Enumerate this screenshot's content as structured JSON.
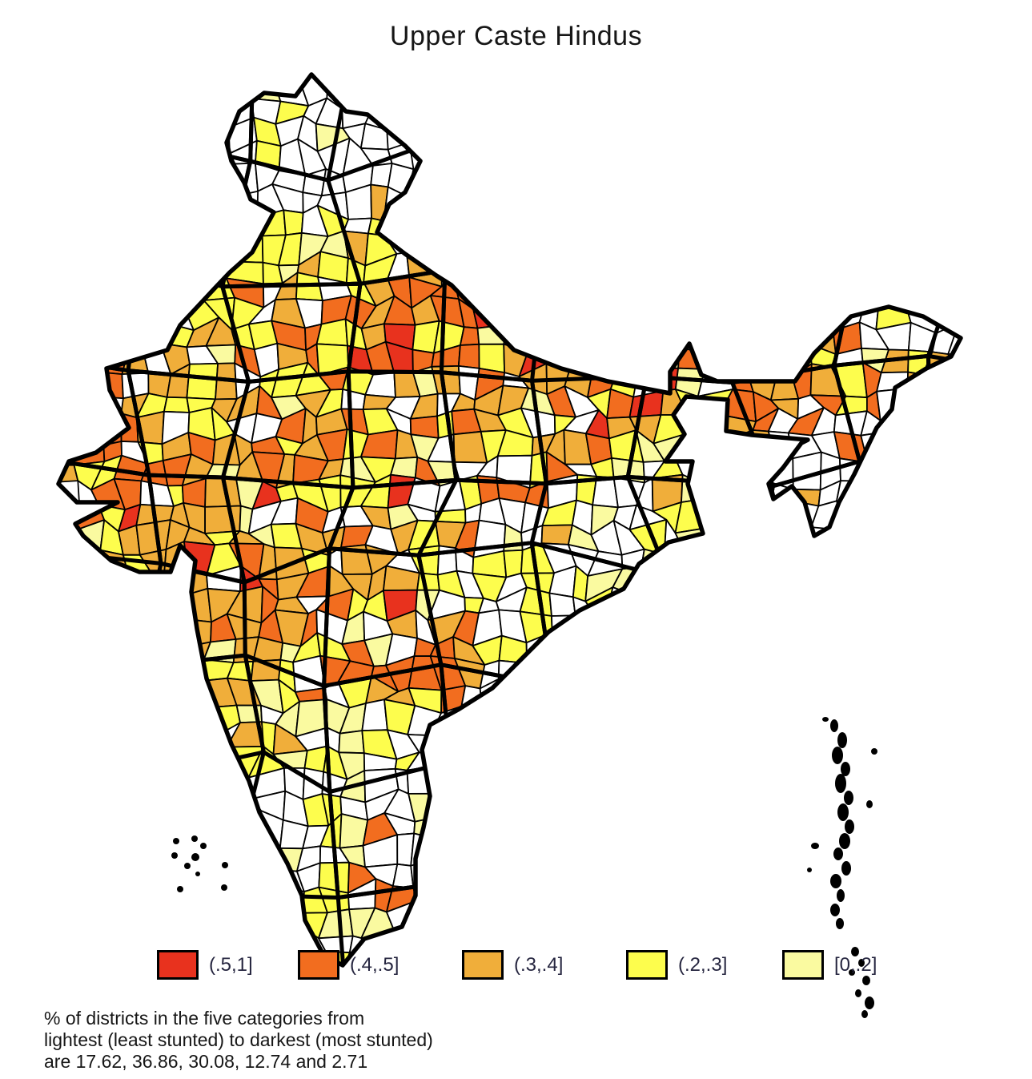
{
  "title": "Upper Caste Hindus",
  "legend": {
    "items": [
      {
        "key": "red",
        "label": "(.5,1]",
        "color": "#e8321e"
      },
      {
        "key": "orange",
        "label": "(.4,.5]",
        "color": "#f26d1f"
      },
      {
        "key": "amber",
        "label": "(.3,.4]",
        "color": "#f0ae3a"
      },
      {
        "key": "yellow",
        "label": "(.2,.3]",
        "color": "#fdfd4d"
      },
      {
        "key": "pale",
        "label": "[0,.2]",
        "color": "#fafaa0"
      }
    ],
    "no_data_color": "#ffffff",
    "border_color": "#000000"
  },
  "note": {
    "lines": [
      "% of districts in the five categories from",
      "lightest (least stunted) to darkest (most stunted)",
      "are 17.62, 36.86, 30.08, 12.74 and 2.71"
    ]
  },
  "chart_data": {
    "type": "choropleth",
    "title": "Upper Caste Hindus",
    "geography": "India, districts (thick lines = state borders)",
    "measure": "share of children stunted among Upper Caste Hindus",
    "categories_light_to_dark": [
      "[0,.2]",
      "(.2,.3]",
      "(.3,.4]",
      "(.4,.5]",
      "(.5,1]"
    ],
    "percent_of_districts_light_to_dark": [
      17.62,
      36.86,
      30.08,
      12.74,
      2.71
    ],
    "legend_position": "bottom",
    "no_data_fill": "white",
    "note": "% of districts in the five categories from lightest (least stunted) to darkest (most stunted) are 17.62, 36.86, 30.08, 12.74 and 2.71"
  }
}
